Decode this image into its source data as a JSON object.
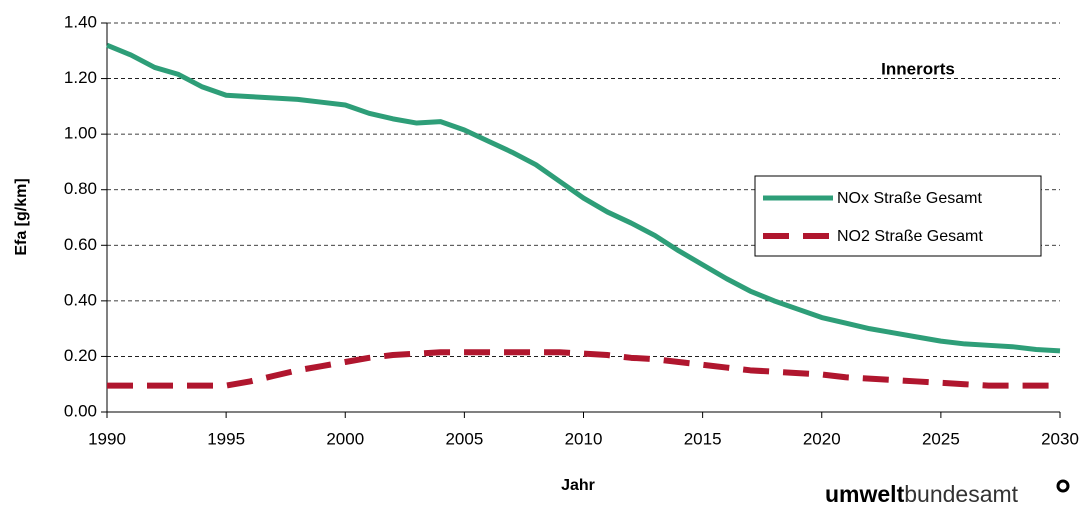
{
  "chart_data": {
    "type": "line",
    "annotation": "Innerorts",
    "xlabel": "Jahr",
    "ylabel": "Efa [g/km]",
    "branding": {
      "bold": "umwelt",
      "regular": "bundesamt"
    },
    "x": [
      1990,
      1991,
      1992,
      1993,
      1994,
      1995,
      1996,
      1997,
      1998,
      1999,
      2000,
      2001,
      2002,
      2003,
      2004,
      2005,
      2006,
      2007,
      2008,
      2009,
      2010,
      2011,
      2012,
      2013,
      2014,
      2015,
      2016,
      2017,
      2018,
      2019,
      2020,
      2021,
      2022,
      2023,
      2024,
      2025,
      2026,
      2027,
      2028,
      2029,
      2030
    ],
    "series": [
      {
        "name": "NOx Straße Gesamt",
        "color": "#2e9e78",
        "dashed": false,
        "values": [
          1.32,
          1.285,
          1.24,
          1.215,
          1.17,
          1.14,
          1.135,
          1.13,
          1.125,
          1.115,
          1.105,
          1.075,
          1.055,
          1.04,
          1.045,
          1.015,
          0.975,
          0.935,
          0.89,
          0.83,
          0.77,
          0.72,
          0.68,
          0.635,
          0.58,
          0.53,
          0.48,
          0.435,
          0.4,
          0.37,
          0.34,
          0.32,
          0.3,
          0.285,
          0.27,
          0.255,
          0.245,
          0.24,
          0.235,
          0.225,
          0.22
        ]
      },
      {
        "name": "NO2 Straße Gesamt",
        "color": "#b0162e",
        "dashed": true,
        "values": [
          0.095,
          0.095,
          0.095,
          0.095,
          0.095,
          0.095,
          0.11,
          0.13,
          0.15,
          0.165,
          0.18,
          0.195,
          0.205,
          0.21,
          0.215,
          0.215,
          0.215,
          0.215,
          0.215,
          0.215,
          0.21,
          0.205,
          0.195,
          0.19,
          0.18,
          0.17,
          0.16,
          0.15,
          0.145,
          0.14,
          0.135,
          0.125,
          0.12,
          0.115,
          0.11,
          0.105,
          0.1,
          0.095,
          0.095,
          0.095,
          0.095
        ]
      }
    ],
    "xlim": [
      1990,
      2030
    ],
    "xticks": [
      1990,
      1995,
      2000,
      2005,
      2010,
      2015,
      2020,
      2025,
      2030
    ],
    "ylim": [
      0,
      1.4
    ],
    "yticks": [
      {
        "value": 0,
        "label": "0.00"
      },
      {
        "value": 0.2,
        "label": "0.20"
      },
      {
        "value": 0.4,
        "label": "0.40"
      },
      {
        "value": 0.6,
        "label": "0.60"
      },
      {
        "value": 0.8,
        "label": "0.80"
      },
      {
        "value": 1,
        "label": "1.00"
      },
      {
        "value": 1.2,
        "label": "1.20"
      },
      {
        "value": 1.4,
        "label": "1.40"
      }
    ],
    "grid": true
  }
}
